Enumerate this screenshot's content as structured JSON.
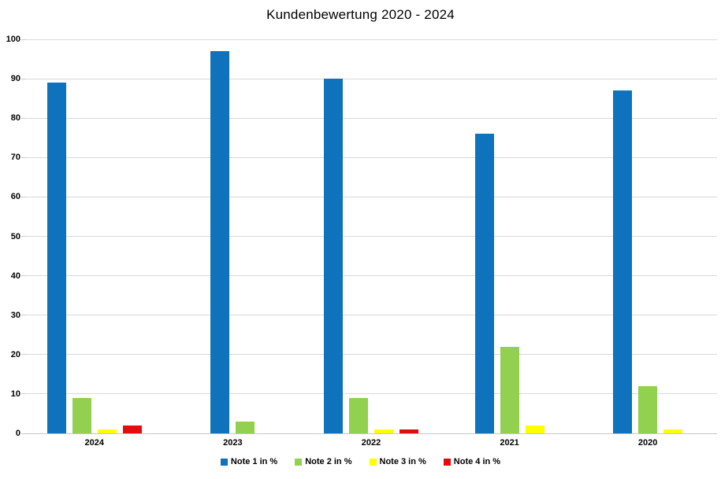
{
  "title": "Kundenbewertung 2020 - 2024",
  "chart_data": {
    "type": "bar",
    "title": "Kundenbewertung 2020 - 2024",
    "categories": [
      "2024",
      "2023",
      "2022",
      "2021",
      "2020"
    ],
    "series": [
      {
        "name": "Note 1 in %",
        "color": "#0F72BC",
        "values": [
          89,
          97,
          90,
          76,
          87
        ]
      },
      {
        "name": "Note 2 in %",
        "color": "#92D050",
        "values": [
          9,
          3,
          9,
          22,
          12
        ]
      },
      {
        "name": "Note 3 in %",
        "color": "#FFFF00",
        "values": [
          1,
          0,
          1,
          2,
          1
        ]
      },
      {
        "name": "Note 4 in %",
        "color": "#E10E11",
        "values": [
          2,
          0,
          1,
          0,
          0
        ]
      }
    ],
    "ylim": [
      0,
      100
    ],
    "yticks": [
      0,
      10,
      20,
      30,
      40,
      50,
      60,
      70,
      80,
      90,
      100
    ],
    "xlabel": "",
    "ylabel": "",
    "grid": true,
    "legend_position": "bottom"
  },
  "colors": {
    "background": "#FFFFFF",
    "gridline": "#D9D9D9",
    "axis_line": "#C6C6C6",
    "text": "#000000"
  }
}
